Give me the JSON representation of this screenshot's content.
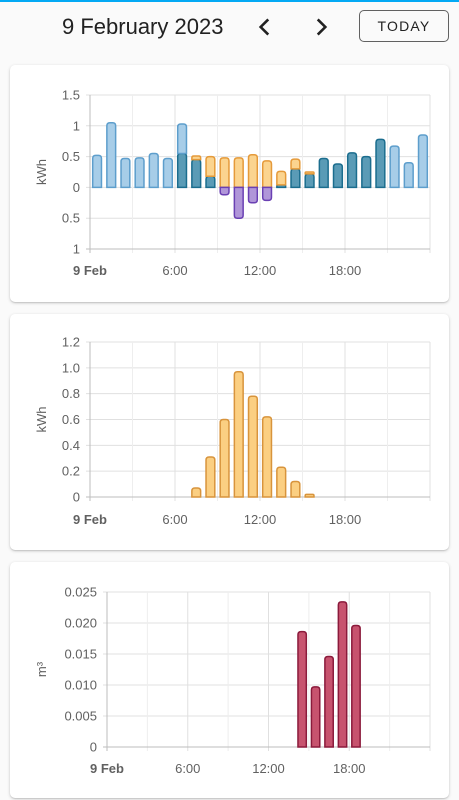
{
  "header": {
    "date_title": "9 February 2023",
    "today_label": "TODAY",
    "accent_color": "#03a9f4",
    "prev_icon": "chevron-left-icon",
    "next_icon": "chevron-right-icon"
  },
  "chart_data": [
    {
      "type": "bar",
      "ylabel": "kWh",
      "x_ticks": [
        "9 Feb",
        "6:00",
        "12:00",
        "18:00"
      ],
      "y_ticks_top": [
        "1.5",
        "1",
        "0.5",
        "0"
      ],
      "y_ticks_bottom": [
        "0.5",
        "1"
      ],
      "ylim": [
        -1,
        1.5
      ],
      "hours": [
        0,
        1,
        2,
        3,
        4,
        5,
        6,
        7,
        8,
        9,
        10,
        11,
        12,
        13,
        14,
        15,
        16,
        17,
        18,
        19,
        20,
        21,
        22,
        23
      ],
      "series": [
        {
          "color": "#1b6d8e",
          "fill": "#5a9bb6",
          "values": [
            0,
            0,
            0,
            0,
            0,
            0,
            0.55,
            0.45,
            0.18,
            0,
            0,
            0,
            0,
            0.04,
            0.3,
            0.22,
            0.47,
            0.38,
            0.56,
            0.5,
            0.78,
            0,
            0,
            0
          ]
        },
        {
          "color": "#5d9ecc",
          "fill": "#a7cde8",
          "values": [
            0.52,
            1.05,
            0.47,
            0.48,
            0.55,
            0.47,
            0.48,
            0,
            0,
            0,
            0,
            0,
            0,
            0,
            0,
            0,
            0,
            0,
            0,
            0,
            0,
            0.67,
            0.4,
            0.85
          ]
        },
        {
          "color": "#e59a3a",
          "fill": "#fbd48f",
          "values": [
            0,
            0,
            0,
            0,
            0,
            0,
            0,
            0.06,
            0.32,
            0.48,
            0.48,
            0.53,
            0.43,
            0.22,
            0.16,
            0.03,
            0,
            0,
            0,
            0,
            0,
            0,
            0,
            0
          ]
        },
        {
          "color": "#6a40b3",
          "fill": "#b096d9",
          "values": [
            0,
            0,
            0,
            0,
            0,
            0,
            0,
            0,
            0,
            -0.12,
            -0.5,
            -0.25,
            -0.21,
            0,
            0,
            0,
            0,
            0,
            0,
            0,
            0,
            0,
            0,
            0
          ]
        }
      ]
    },
    {
      "type": "bar",
      "ylabel": "kWh",
      "x_ticks": [
        "9 Feb",
        "6:00",
        "12:00",
        "18:00"
      ],
      "y_ticks": [
        "1.2",
        "1.0",
        "0.8",
        "0.6",
        "0.4",
        "0.2",
        "0"
      ],
      "ylim": [
        0,
        1.2
      ],
      "hours": [
        0,
        1,
        2,
        3,
        4,
        5,
        6,
        7,
        8,
        9,
        10,
        11,
        12,
        13,
        14,
        15,
        16,
        17,
        18,
        19,
        20,
        21,
        22,
        23
      ],
      "series": [
        {
          "color": "#d8943c",
          "fill": "#fbcf82",
          "values": [
            0,
            0,
            0,
            0,
            0,
            0,
            0,
            0.07,
            0.31,
            0.6,
            0.97,
            0.78,
            0.62,
            0.23,
            0.12,
            0.02,
            0,
            0,
            0,
            0,
            0,
            0,
            0,
            0
          ]
        }
      ]
    },
    {
      "type": "bar",
      "ylabel": "m³",
      "x_ticks": [
        "9 Feb",
        "6:00",
        "12:00",
        "18:00"
      ],
      "y_ticks": [
        "0.025",
        "0.020",
        "0.015",
        "0.010",
        "0.005",
        "0"
      ],
      "ylim": [
        0,
        0.025
      ],
      "hours": [
        0,
        1,
        2,
        3,
        4,
        5,
        6,
        7,
        8,
        9,
        10,
        11,
        12,
        13,
        14,
        15,
        16,
        17,
        18,
        19,
        20,
        21,
        22,
        23
      ],
      "series": [
        {
          "color": "#8b1a3b",
          "fill": "#c7536e",
          "values": [
            0,
            0,
            0,
            0,
            0,
            0,
            0,
            0,
            0,
            0,
            0,
            0,
            0,
            0,
            0.0186,
            0.0097,
            0.0146,
            0.0234,
            0.0196,
            0,
            0,
            0,
            0,
            0
          ]
        }
      ]
    }
  ]
}
